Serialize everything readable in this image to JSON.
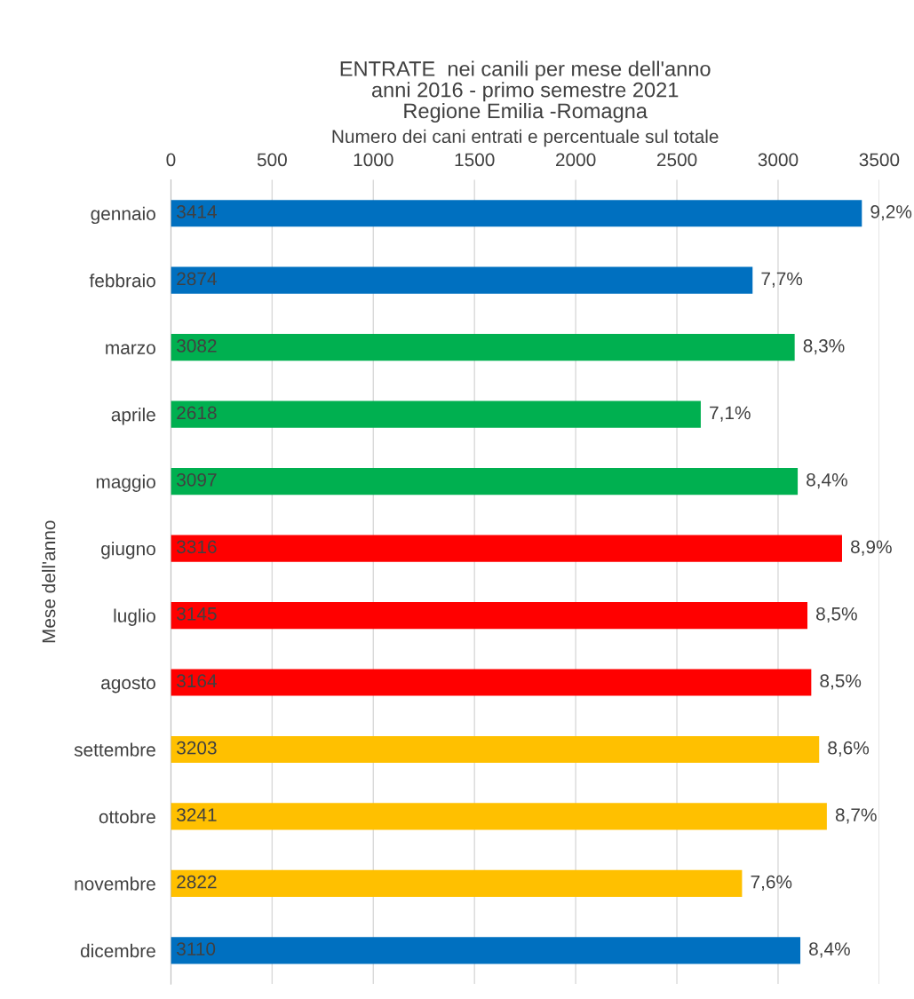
{
  "chart_data": {
    "type": "bar",
    "orientation": "horizontal",
    "title": "ENTRATE  nei canili per mese dell'anno\nanni 2016 - primo semestre 2021\nRegione Emilia -Romagna",
    "xlabel": "Numero dei cani entrati e percentuale sul totale",
    "ylabel": "Mese dell'anno",
    "categories": [
      "gennaio",
      "febbraio",
      "marzo",
      "aprile",
      "maggio",
      "giugno",
      "luglio",
      "agosto",
      "settembre",
      "ottobre",
      "novembre",
      "dicembre"
    ],
    "values": [
      3414,
      2874,
      3082,
      2618,
      3097,
      3316,
      3145,
      3164,
      3203,
      3241,
      2822,
      3110
    ],
    "colors": [
      "#0070c0",
      "#0070c0",
      "#00b050",
      "#00b050",
      "#00b050",
      "#ff0000",
      "#ff0000",
      "#ff0000",
      "#ffc000",
      "#ffc000",
      "#ffc000",
      "#0070c0"
    ],
    "data_labels": true,
    "annotations": [
      {
        "text": "9,2%",
        "x": 3414,
        "y": "gennaio"
      },
      {
        "text": "7,7%",
        "x": 2874,
        "y": "febbraio"
      },
      {
        "text": "8,3%",
        "x": 3082,
        "y": "marzo"
      },
      {
        "text": "7,1%",
        "x": 2618,
        "y": "aprile"
      },
      {
        "text": "8,4%",
        "x": 3097,
        "y": "maggio"
      },
      {
        "text": "8,9%",
        "x": 3316,
        "y": "giugno"
      },
      {
        "text": "8,5%",
        "x": 3145,
        "y": "luglio"
      },
      {
        "text": "8,5%",
        "x": 3164,
        "y": "agosto"
      },
      {
        "text": "8,6%",
        "x": 3203,
        "y": "settembre"
      },
      {
        "text": "8,7%",
        "x": 3241,
        "y": "ottobre"
      },
      {
        "text": "7,6%",
        "x": 2822,
        "y": "novembre"
      },
      {
        "text": "8,4%",
        "x": 3110,
        "y": "dicembre"
      }
    ],
    "xlim": [
      0,
      3500
    ],
    "xticks": [
      0,
      500,
      1000,
      1500,
      2000,
      2500,
      3000,
      3500
    ],
    "grid": "x"
  }
}
